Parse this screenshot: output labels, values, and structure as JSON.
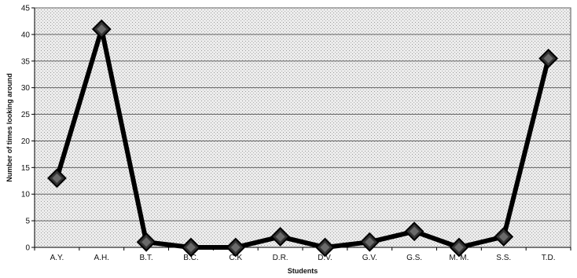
{
  "chart_data": {
    "type": "line",
    "title": "",
    "xlabel": "Students",
    "ylabel": "Number of times looking around",
    "categories": [
      "A.Y.",
      "A.H.",
      "B.T.",
      "B.C.",
      "C.K",
      "D.R.",
      "D.V.",
      "G.V.",
      "G.S.",
      "M. M.",
      "S.S.",
      "T.D."
    ],
    "series": [
      {
        "name": "",
        "values": [
          13,
          41,
          1,
          0,
          0,
          2,
          0,
          1,
          3,
          0,
          2,
          35.5
        ]
      }
    ],
    "ylim": [
      0,
      45
    ],
    "yticks": [
      0,
      5,
      10,
      15,
      20,
      25,
      30,
      35,
      40,
      45
    ],
    "grid": true,
    "legend": "none",
    "colors": {
      "line": "#000000",
      "marker_fill": "#333333",
      "plot_background": "#e9e9e9",
      "gridline": "#666666"
    }
  }
}
